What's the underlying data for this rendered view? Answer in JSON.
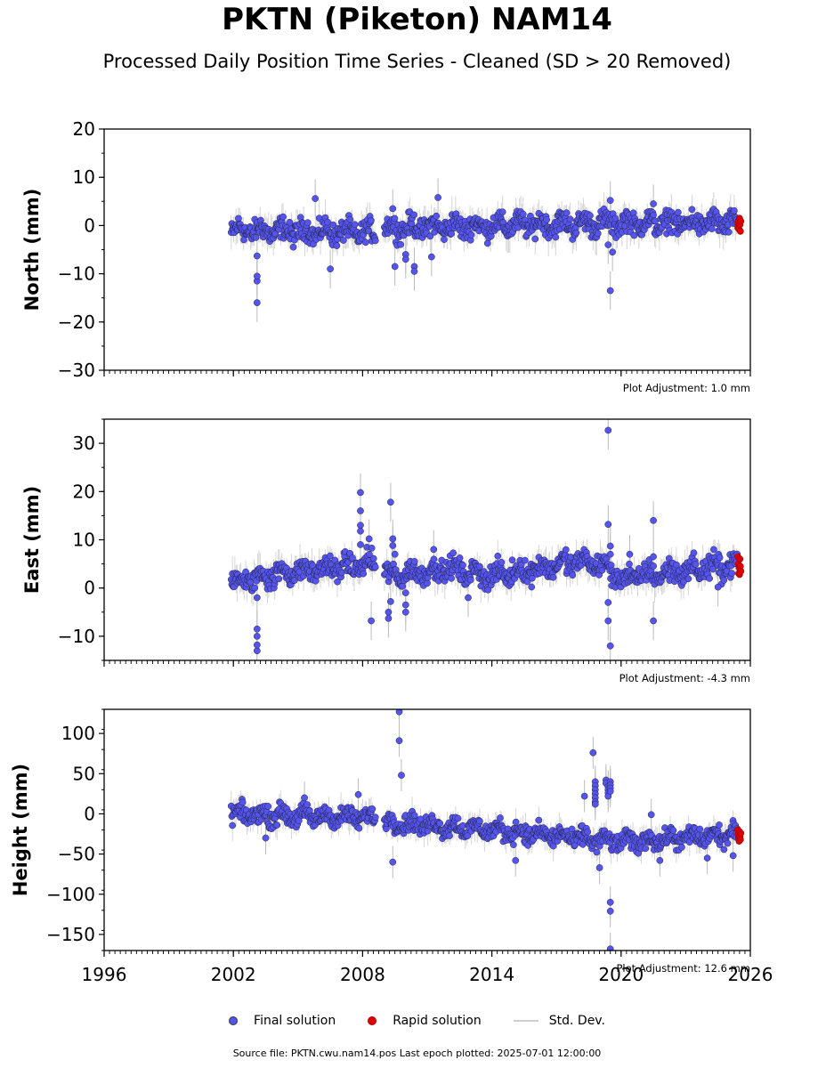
{
  "title": "PKTN (Piketon) NAM14",
  "subtitle": "Processed Daily Position Time Series - Cleaned (SD > 20 Removed)",
  "legend": {
    "final": "Final solution",
    "rapid": "Rapid solution",
    "std": "Std. Dev."
  },
  "footer": "Source file: PKTN.cwu.nam14.pos  Last epoch plotted: 2025-07-01 12:00:00",
  "colors": {
    "final": "#5555ee",
    "rapid": "#dd0000",
    "std": "#bbbbbb",
    "edge": "#222244"
  },
  "chart_data": {
    "type": "scatter",
    "x_axis": {
      "range": [
        1996,
        2026
      ],
      "ticks": [
        1996,
        2002,
        2008,
        2014,
        2020,
        2026
      ],
      "minor_step": 0.25
    },
    "panels": [
      {
        "id": "north",
        "ylabel": "North (mm)",
        "ylim": [
          -30,
          20
        ],
        "yticks": [
          20,
          10,
          0,
          -10,
          -20,
          -30
        ],
        "adjustment": "Plot Adjustment: 1.0 mm",
        "baseline": [
          [
            2001.9,
            -1.0
          ],
          [
            2008.6,
            -1.5
          ],
          [
            2009.2,
            -0.5
          ],
          [
            2019.0,
            0.5
          ],
          [
            2025.5,
            0.5
          ]
        ],
        "scatter": 1.6,
        "gaps": [
          [
            2008.6,
            2009.0
          ]
        ],
        "outliers": [
          [
            2003.1,
            -16.0
          ],
          [
            2003.1,
            -11.5
          ],
          [
            2003.1,
            -10.5
          ],
          [
            2003.1,
            -6.3
          ],
          [
            2006.5,
            -9.0
          ],
          [
            2005.8,
            5.6
          ],
          [
            2009.4,
            3.5
          ],
          [
            2009.5,
            -8.5
          ],
          [
            2010.0,
            -6.0
          ],
          [
            2010.0,
            -7.0
          ],
          [
            2010.4,
            -8.5
          ],
          [
            2010.4,
            -9.5
          ],
          [
            2011.2,
            -6.5
          ],
          [
            2011.5,
            5.8
          ],
          [
            2019.5,
            -13.5
          ],
          [
            2019.5,
            5.2
          ],
          [
            2019.4,
            -4.0
          ],
          [
            2019.6,
            -5.5
          ],
          [
            2021.5,
            4.5
          ]
        ],
        "rapid": [
          [
            2025.42,
            -0.5
          ],
          [
            2025.44,
            0.5
          ],
          [
            2025.46,
            1.0
          ],
          [
            2025.48,
            -0.8
          ],
          [
            2025.5,
            1.5
          ],
          [
            2025.52,
            0.2
          ],
          [
            2025.54,
            -1.2
          ],
          [
            2025.56,
            0.9
          ]
        ]
      },
      {
        "id": "east",
        "ylabel": "East (mm)",
        "ylim": [
          -15,
          35
        ],
        "yticks": [
          30,
          20,
          10,
          0,
          -10
        ],
        "adjustment": "Plot Adjustment: -4.3 mm",
        "baseline": [
          [
            2001.9,
            1.0
          ],
          [
            2004.0,
            3.0
          ],
          [
            2008.5,
            5.0
          ],
          [
            2009.2,
            2.5
          ],
          [
            2012.0,
            4.0
          ],
          [
            2014.0,
            2.5
          ],
          [
            2018.0,
            5.5
          ],
          [
            2019.0,
            5.0
          ],
          [
            2020.0,
            2.0
          ],
          [
            2025.5,
            5.0
          ]
        ],
        "scatter": 1.6,
        "gaps": [
          [
            2008.6,
            2009.0
          ]
        ],
        "outliers": [
          [
            2003.1,
            -13.0
          ],
          [
            2003.1,
            -11.8
          ],
          [
            2003.1,
            -10.0
          ],
          [
            2003.1,
            -8.5
          ],
          [
            2003.1,
            -2.0
          ],
          [
            2007.9,
            19.8
          ],
          [
            2007.9,
            16.0
          ],
          [
            2007.9,
            13.0
          ],
          [
            2007.9,
            11.8
          ],
          [
            2007.9,
            9.0
          ],
          [
            2008.3,
            10.2
          ],
          [
            2008.4,
            -6.8
          ],
          [
            2009.3,
            17.8
          ],
          [
            2009.2,
            -5.0
          ],
          [
            2009.2,
            -6.3
          ],
          [
            2009.3,
            -2.8
          ],
          [
            2009.4,
            10.2
          ],
          [
            2009.4,
            8.8
          ],
          [
            2009.5,
            7.0
          ],
          [
            2010.0,
            -3.5
          ],
          [
            2010.0,
            -5.0
          ],
          [
            2010.0,
            -1.0
          ],
          [
            2011.3,
            8.0
          ],
          [
            2012.9,
            -2.0
          ],
          [
            2019.4,
            32.7
          ],
          [
            2019.4,
            13.2
          ],
          [
            2019.4,
            -3.0
          ],
          [
            2019.4,
            -6.8
          ],
          [
            2019.5,
            8.7
          ],
          [
            2019.5,
            7.0
          ],
          [
            2019.5,
            -12.0
          ],
          [
            2020.4,
            7.0
          ],
          [
            2021.5,
            14.0
          ],
          [
            2021.5,
            -6.8
          ],
          [
            2021.5,
            6.5
          ],
          [
            2024.5,
            0.2
          ]
        ],
        "rapid": [
          [
            2025.42,
            6.5
          ],
          [
            2025.44,
            5.0
          ],
          [
            2025.46,
            3.0
          ],
          [
            2025.48,
            4.2
          ],
          [
            2025.5,
            2.8
          ],
          [
            2025.52,
            6.0
          ],
          [
            2025.54,
            4.5
          ],
          [
            2025.56,
            3.5
          ]
        ]
      },
      {
        "id": "height",
        "ylabel": "Height (mm)",
        "ylim": [
          -170,
          130
        ],
        "yticks": [
          100,
          50,
          0,
          -50,
          -100,
          -150
        ],
        "adjustment": "Plot Adjustment: 12.6 mm",
        "baseline": [
          [
            2001.9,
            0.0
          ],
          [
            2008.6,
            -5.0
          ],
          [
            2009.2,
            -10.0
          ],
          [
            2014.0,
            -20.0
          ],
          [
            2018.0,
            -30.0
          ],
          [
            2020.0,
            -35.0
          ],
          [
            2025.5,
            -25.0
          ]
        ],
        "scatter": 8.0,
        "gaps": [
          [
            2008.6,
            2009.0
          ]
        ],
        "outliers": [
          [
            2009.7,
            127.0
          ],
          [
            2009.7,
            91.0
          ],
          [
            2009.8,
            48.0
          ],
          [
            2009.4,
            -60.0
          ],
          [
            2003.5,
            -30.0
          ],
          [
            2005.3,
            20.0
          ],
          [
            2007.8,
            24.0
          ],
          [
            2015.1,
            -58.0
          ],
          [
            2018.7,
            76.0
          ],
          [
            2018.8,
            40.0
          ],
          [
            2018.8,
            35.0
          ],
          [
            2018.8,
            30.0
          ],
          [
            2018.8,
            25.0
          ],
          [
            2018.8,
            20.0
          ],
          [
            2018.8,
            15.0
          ],
          [
            2018.8,
            12.0
          ],
          [
            2018.3,
            22.0
          ],
          [
            2019.3,
            42.0
          ],
          [
            2019.3,
            38.0
          ],
          [
            2019.4,
            34.0
          ],
          [
            2019.4,
            30.0
          ],
          [
            2019.4,
            26.0
          ],
          [
            2019.4,
            22.0
          ],
          [
            2019.5,
            40.0
          ],
          [
            2019.5,
            36.0
          ],
          [
            2019.5,
            32.0
          ],
          [
            2019.5,
            28.0
          ],
          [
            2019.5,
            -110.0
          ],
          [
            2019.5,
            -121.0
          ],
          [
            2019.5,
            -168.0
          ],
          [
            2019.0,
            -67.0
          ],
          [
            2021.4,
            -1.0
          ],
          [
            2021.8,
            -58.0
          ],
          [
            2024.0,
            -55.0
          ],
          [
            2025.2,
            -52.0
          ]
        ],
        "rapid": [
          [
            2025.42,
            -20.0
          ],
          [
            2025.44,
            -25.0
          ],
          [
            2025.46,
            -30.0
          ],
          [
            2025.48,
            -34.0
          ],
          [
            2025.5,
            -22.0
          ],
          [
            2025.52,
            -28.0
          ],
          [
            2025.54,
            -32.0
          ],
          [
            2025.56,
            -24.0
          ]
        ]
      }
    ]
  }
}
